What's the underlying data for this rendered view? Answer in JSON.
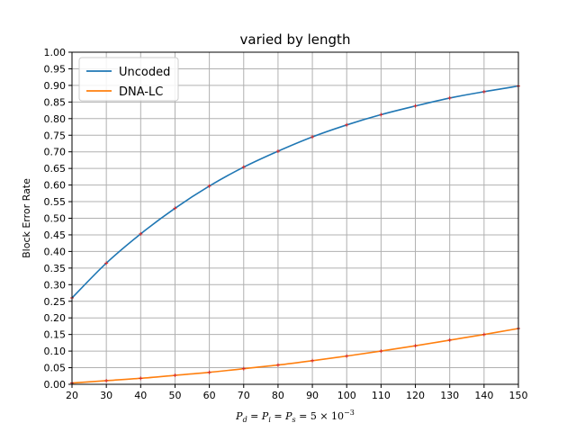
{
  "chart_data": {
    "type": "line",
    "title": "varied by length",
    "xlabel": {
      "prefix": "P",
      "parts": [
        {
          "text": "P",
          "italic": true
        },
        {
          "text": "d",
          "sub": true,
          "italic": true
        },
        {
          "text": " = ",
          "italic": false
        },
        {
          "text": "P",
          "italic": true
        },
        {
          "text": "i",
          "sub": true,
          "italic": true
        },
        {
          "text": " = ",
          "italic": false
        },
        {
          "text": "P",
          "italic": true
        },
        {
          "text": "s",
          "sub": true,
          "italic": true
        },
        {
          "text": " = 5 × 10",
          "italic": false
        },
        {
          "text": "−3",
          "sup": true,
          "italic": false
        }
      ]
    },
    "ylabel": "Block Error Rate",
    "xlim": [
      20,
      150
    ],
    "ylim": [
      0,
      1.0
    ],
    "xticks": [
      20,
      30,
      40,
      50,
      60,
      70,
      80,
      90,
      100,
      110,
      120,
      130,
      140,
      150
    ],
    "yticks": [
      0.0,
      0.05,
      0.1,
      0.15,
      0.2,
      0.25,
      0.3,
      0.35,
      0.4,
      0.45,
      0.5,
      0.55,
      0.6,
      0.65,
      0.7,
      0.75,
      0.8,
      0.85,
      0.9,
      0.95,
      1.0
    ],
    "grid": true,
    "legend": "top-left",
    "series": [
      {
        "name": "Uncoded",
        "color": "#1f77b4",
        "x": [
          20,
          30,
          40,
          50,
          60,
          70,
          80,
          90,
          100,
          110,
          120,
          130,
          140,
          150
        ],
        "values": [
          0.26,
          0.365,
          0.453,
          0.53,
          0.597,
          0.654,
          0.702,
          0.745,
          0.781,
          0.812,
          0.838,
          0.862,
          0.881,
          0.898
        ]
      },
      {
        "name": "DNA-LC",
        "color": "#ff7f0e",
        "x": [
          20,
          30,
          40,
          50,
          60,
          70,
          80,
          90,
          100,
          110,
          120,
          130,
          140,
          150
        ],
        "values": [
          0.004,
          0.011,
          0.018,
          0.027,
          0.036,
          0.047,
          0.058,
          0.071,
          0.085,
          0.1,
          0.116,
          0.133,
          0.15,
          0.168
        ]
      }
    ],
    "marker_color": "#d62728"
  }
}
